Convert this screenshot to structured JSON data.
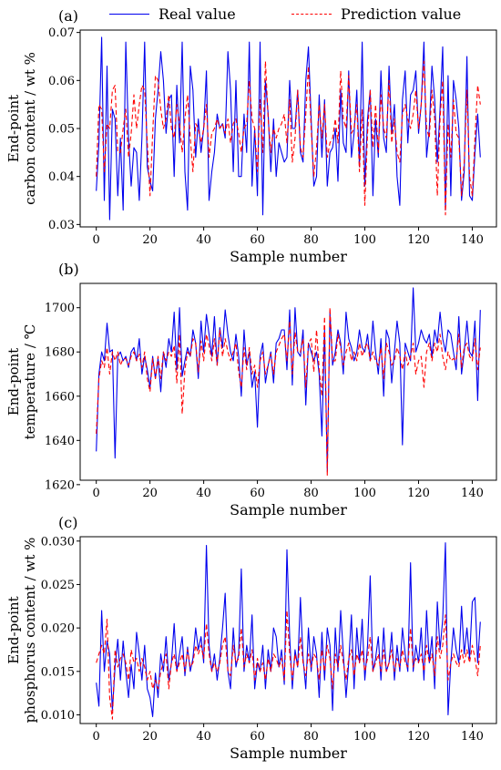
{
  "legend": {
    "real_label": "Real value",
    "pred_label": "Prediction value",
    "real_color": "#0000ee",
    "pred_color": "#ff0000"
  },
  "chart_data": [
    {
      "type": "line",
      "panel_label": "(a)",
      "xlabel": "Sample number",
      "ylabel_lines": [
        "End-point",
        "carbon content / wt %"
      ],
      "xlim": [
        -6,
        149
      ],
      "ylim": [
        0.0295,
        0.0705
      ],
      "xticks": [
        0,
        20,
        40,
        60,
        80,
        100,
        120,
        140
      ],
      "xtick_labels": [
        "0",
        "20",
        "40",
        "60",
        "80",
        "100",
        "120",
        "140"
      ],
      "yticks": [
        0.03,
        0.04,
        0.05,
        0.06,
        0.07
      ],
      "ytick_labels": [
        "0.03",
        "0.04",
        "0.05",
        "0.06",
        "0.07"
      ],
      "series": [
        {
          "name": "Real value",
          "color": "#0000ee",
          "dash": "",
          "values": [
            0.037,
            0.047,
            0.069,
            0.035,
            0.063,
            0.031,
            0.054,
            0.052,
            0.036,
            0.048,
            0.033,
            0.068,
            0.048,
            0.038,
            0.046,
            0.045,
            0.035,
            0.048,
            0.068,
            0.042,
            0.039,
            0.037,
            0.052,
            0.058,
            0.066,
            0.06,
            0.049,
            0.056,
            0.057,
            0.04,
            0.059,
            0.047,
            0.068,
            0.041,
            0.033,
            0.063,
            0.058,
            0.044,
            0.052,
            0.045,
            0.05,
            0.062,
            0.035,
            0.041,
            0.045,
            0.053,
            0.05,
            0.051,
            0.048,
            0.066,
            0.058,
            0.041,
            0.06,
            0.04,
            0.04,
            0.053,
            0.045,
            0.068,
            0.038,
            0.05,
            0.036,
            0.068,
            0.032,
            0.06,
            0.053,
            0.041,
            0.052,
            0.04,
            0.047,
            0.045,
            0.043,
            0.044,
            0.06,
            0.05,
            0.05,
            0.058,
            0.045,
            0.043,
            0.06,
            0.067,
            0.052,
            0.038,
            0.04,
            0.057,
            0.044,
            0.056,
            0.038,
            0.045,
            0.046,
            0.05,
            0.039,
            0.058,
            0.047,
            0.045,
            0.062,
            0.044,
            0.049,
            0.058,
            0.042,
            0.068,
            0.038,
            0.052,
            0.058,
            0.036,
            0.052,
            0.044,
            0.062,
            0.048,
            0.045,
            0.063,
            0.049,
            0.055,
            0.04,
            0.034,
            0.056,
            0.062,
            0.047,
            0.057,
            0.058,
            0.062,
            0.049,
            0.055,
            0.068,
            0.044,
            0.05,
            0.063,
            0.056,
            0.043,
            0.054,
            0.067,
            0.033,
            0.061,
            0.036,
            0.06,
            0.056,
            0.05,
            0.035,
            0.041,
            0.065,
            0.036,
            0.035,
            0.045,
            0.053,
            0.044
          ]
        },
        {
          "name": "Prediction value",
          "color": "#ff0000",
          "dash": "5,3",
          "values": [
            0.04,
            0.055,
            0.054,
            0.041,
            0.051,
            0.05,
            0.058,
            0.059,
            0.045,
            0.045,
            0.05,
            0.054,
            0.044,
            0.049,
            0.057,
            0.05,
            0.055,
            0.059,
            0.058,
            0.047,
            0.036,
            0.049,
            0.061,
            0.06,
            0.054,
            0.05,
            0.052,
            0.057,
            0.05,
            0.048,
            0.055,
            0.051,
            0.045,
            0.052,
            0.057,
            0.048,
            0.041,
            0.051,
            0.05,
            0.047,
            0.05,
            0.055,
            0.044,
            0.049,
            0.05,
            0.052,
            0.05,
            0.051,
            0.049,
            0.052,
            0.047,
            0.051,
            0.052,
            0.049,
            0.045,
            0.05,
            0.051,
            0.06,
            0.052,
            0.05,
            0.041,
            0.056,
            0.045,
            0.064,
            0.052,
            0.045,
            0.05,
            0.048,
            0.05,
            0.051,
            0.053,
            0.047,
            0.056,
            0.043,
            0.048,
            0.058,
            0.046,
            0.044,
            0.053,
            0.063,
            0.05,
            0.04,
            0.046,
            0.055,
            0.048,
            0.055,
            0.044,
            0.047,
            0.048,
            0.052,
            0.047,
            0.062,
            0.052,
            0.05,
            0.061,
            0.049,
            0.05,
            0.055,
            0.041,
            0.054,
            0.034,
            0.049,
            0.058,
            0.046,
            0.055,
            0.045,
            0.057,
            0.05,
            0.048,
            0.06,
            0.047,
            0.052,
            0.045,
            0.043,
            0.053,
            0.055,
            0.052,
            0.05,
            0.053,
            0.058,
            0.05,
            0.055,
            0.064,
            0.05,
            0.048,
            0.058,
            0.052,
            0.036,
            0.052,
            0.06,
            0.032,
            0.051,
            0.044,
            0.056,
            0.049,
            0.048,
            0.036,
            0.043,
            0.058,
            0.04,
            0.036,
            0.048,
            0.059,
            0.055
          ]
        }
      ]
    },
    {
      "type": "line",
      "panel_label": "(b)",
      "xlabel": "Sample number",
      "ylabel_lines": [
        "End-point",
        "temperature / ℃"
      ],
      "xlim": [
        -6,
        149
      ],
      "ylim": [
        1622,
        1711
      ],
      "xticks": [
        0,
        20,
        40,
        60,
        80,
        100,
        120,
        140
      ],
      "xtick_labels": [
        "0",
        "20",
        "40",
        "60",
        "80",
        "100",
        "120",
        "140"
      ],
      "yticks": [
        1620,
        1640,
        1660,
        1680,
        1700
      ],
      "ytick_labels": [
        "1620",
        "1640",
        "1660",
        "1680",
        "1700"
      ],
      "series": [
        {
          "name": "Real value",
          "color": "#0000ee",
          "dash": "",
          "values": [
            1635,
            1670,
            1680,
            1676,
            1693,
            1680,
            1681,
            1632,
            1678,
            1680,
            1676,
            1678,
            1673,
            1680,
            1682,
            1676,
            1686,
            1670,
            1678,
            1672,
            1664,
            1678,
            1668,
            1677,
            1662,
            1680,
            1673,
            1686,
            1680,
            1698,
            1672,
            1700,
            1669,
            1676,
            1682,
            1678,
            1690,
            1684,
            1668,
            1694,
            1680,
            1697,
            1688,
            1678,
            1696,
            1674,
            1691,
            1682,
            1699,
            1688,
            1680,
            1676,
            1688,
            1678,
            1660,
            1690,
            1674,
            1680,
            1664,
            1671,
            1646,
            1678,
            1684,
            1666,
            1674,
            1680,
            1666,
            1684,
            1686,
            1690,
            1690,
            1672,
            1699,
            1665,
            1700,
            1680,
            1678,
            1690,
            1656,
            1684,
            1680,
            1676,
            1680,
            1670,
            1642,
            1690,
            1626,
            1698,
            1674,
            1680,
            1690,
            1684,
            1670,
            1698,
            1686,
            1682,
            1676,
            1680,
            1690,
            1682,
            1680,
            1688,
            1676,
            1694,
            1680,
            1670,
            1686,
            1660,
            1690,
            1686,
            1666,
            1680,
            1694,
            1684,
            1638,
            1684,
            1680,
            1676,
            1709,
            1680,
            1684,
            1690,
            1686,
            1684,
            1688,
            1678,
            1690,
            1684,
            1698,
            1686,
            1680,
            1690,
            1688,
            1680,
            1672,
            1696,
            1670,
            1680,
            1694,
            1680,
            1678,
            1694,
            1658,
            1699
          ]
        },
        {
          "name": "Prediction value",
          "color": "#ff0000",
          "dash": "5,3",
          "values": [
            1643,
            1668,
            1676,
            1673,
            1682,
            1670,
            1680,
            1676,
            1680,
            1674,
            1677,
            1677,
            1674,
            1678,
            1680,
            1676,
            1679,
            1673,
            1680,
            1668,
            1662,
            1677,
            1668,
            1678,
            1668,
            1680,
            1676,
            1680,
            1678,
            1683,
            1666,
            1688,
            1652,
            1672,
            1680,
            1678,
            1686,
            1684,
            1671,
            1685,
            1676,
            1688,
            1683,
            1676,
            1686,
            1674,
            1690,
            1678,
            1686,
            1680,
            1676,
            1680,
            1684,
            1671,
            1664,
            1682,
            1672,
            1682,
            1670,
            1674,
            1664,
            1676,
            1680,
            1670,
            1674,
            1679,
            1670,
            1680,
            1683,
            1686,
            1688,
            1676,
            1694,
            1670,
            1689,
            1680,
            1680,
            1686,
            1664,
            1684,
            1686,
            1671,
            1690,
            1672,
            1660,
            1696,
            1624,
            1700,
            1676,
            1676,
            1688,
            1682,
            1674,
            1680,
            1684,
            1676,
            1680,
            1676,
            1684,
            1678,
            1682,
            1684,
            1676,
            1680,
            1676,
            1674,
            1682,
            1668,
            1684,
            1680,
            1674,
            1676,
            1682,
            1678,
            1672,
            1680,
            1674,
            1678,
            1684,
            1670,
            1676,
            1678,
            1664,
            1680,
            1684,
            1676,
            1684,
            1680,
            1688,
            1678,
            1672,
            1680,
            1676,
            1677,
            1676,
            1688,
            1673,
            1682,
            1684,
            1678,
            1676,
            1686,
            1672,
            1682
          ]
        }
      ]
    },
    {
      "type": "line",
      "panel_label": "(c)",
      "xlabel": "Sample number",
      "ylabel_lines": [
        "End-point",
        "phosphorus content / wt %"
      ],
      "xlim": [
        -6,
        149
      ],
      "ylim": [
        0.009,
        0.0305
      ],
      "xticks": [
        0,
        20,
        40,
        60,
        80,
        100,
        120,
        140
      ],
      "xtick_labels": [
        "0",
        "20",
        "40",
        "60",
        "80",
        "100",
        "120",
        "140"
      ],
      "yticks": [
        0.01,
        0.015,
        0.02,
        0.025,
        0.03
      ],
      "ytick_labels": [
        "0.010",
        "0.015",
        "0.020",
        "0.025",
        "0.030"
      ],
      "series": [
        {
          "name": "Real value",
          "color": "#0000ee",
          "dash": "",
          "values": [
            0.0137,
            0.011,
            0.022,
            0.015,
            0.0185,
            0.017,
            0.0105,
            0.0155,
            0.0187,
            0.014,
            0.0185,
            0.015,
            0.012,
            0.0158,
            0.013,
            0.0195,
            0.017,
            0.014,
            0.018,
            0.013,
            0.012,
            0.0098,
            0.0148,
            0.012,
            0.017,
            0.015,
            0.019,
            0.014,
            0.016,
            0.0205,
            0.015,
            0.017,
            0.019,
            0.0145,
            0.0178,
            0.015,
            0.0165,
            0.02,
            0.0175,
            0.019,
            0.016,
            0.0295,
            0.018,
            0.015,
            0.017,
            0.014,
            0.0165,
            0.02,
            0.024,
            0.015,
            0.013,
            0.02,
            0.0155,
            0.017,
            0.0268,
            0.015,
            0.018,
            0.016,
            0.0215,
            0.013,
            0.016,
            0.015,
            0.018,
            0.013,
            0.0175,
            0.015,
            0.02,
            0.019,
            0.0155,
            0.0175,
            0.0135,
            0.029,
            0.019,
            0.013,
            0.0175,
            0.0155,
            0.0235,
            0.0165,
            0.013,
            0.02,
            0.015,
            0.019,
            0.017,
            0.012,
            0.0195,
            0.014,
            0.02,
            0.018,
            0.0105,
            0.02,
            0.015,
            0.022,
            0.017,
            0.012,
            0.016,
            0.0215,
            0.013,
            0.02,
            0.016,
            0.021,
            0.014,
            0.018,
            0.026,
            0.015,
            0.0165,
            0.019,
            0.014,
            0.02,
            0.015,
            0.016,
            0.0195,
            0.014,
            0.018,
            0.015,
            0.02,
            0.017,
            0.015,
            0.0275,
            0.015,
            0.018,
            0.016,
            0.02,
            0.014,
            0.022,
            0.016,
            0.019,
            0.013,
            0.023,
            0.0175,
            0.021,
            0.0298,
            0.01,
            0.016,
            0.02,
            0.0175,
            0.016,
            0.0225,
            0.017,
            0.02,
            0.0165,
            0.023,
            0.0235,
            0.016,
            0.0207
          ]
        },
        {
          "name": "Prediction value",
          "color": "#ff0000",
          "dash": "5,3",
          "values": [
            0.016,
            0.017,
            0.018,
            0.017,
            0.021,
            0.012,
            0.0095,
            0.0175,
            0.0155,
            0.0165,
            0.017,
            0.016,
            0.014,
            0.0175,
            0.016,
            0.0165,
            0.015,
            0.0165,
            0.0155,
            0.014,
            0.015,
            0.013,
            0.014,
            0.013,
            0.015,
            0.016,
            0.017,
            0.013,
            0.016,
            0.017,
            0.015,
            0.016,
            0.017,
            0.015,
            0.0175,
            0.0155,
            0.016,
            0.018,
            0.017,
            0.018,
            0.0165,
            0.0205,
            0.017,
            0.015,
            0.016,
            0.015,
            0.016,
            0.018,
            0.019,
            0.015,
            0.0145,
            0.018,
            0.016,
            0.0165,
            0.02,
            0.0155,
            0.017,
            0.016,
            0.0175,
            0.014,
            0.0165,
            0.015,
            0.016,
            0.014,
            0.0165,
            0.015,
            0.017,
            0.0165,
            0.0155,
            0.0165,
            0.014,
            0.022,
            0.017,
            0.014,
            0.017,
            0.0155,
            0.019,
            0.016,
            0.0145,
            0.017,
            0.0155,
            0.017,
            0.0165,
            0.014,
            0.0175,
            0.015,
            0.018,
            0.0165,
            0.013,
            0.017,
            0.0155,
            0.018,
            0.016,
            0.014,
            0.0165,
            0.0175,
            0.0145,
            0.017,
            0.016,
            0.0175,
            0.015,
            0.0165,
            0.019,
            0.015,
            0.016,
            0.017,
            0.015,
            0.0175,
            0.015,
            0.016,
            0.0175,
            0.015,
            0.0165,
            0.0155,
            0.0175,
            0.016,
            0.0155,
            0.02,
            0.0155,
            0.0165,
            0.016,
            0.017,
            0.015,
            0.018,
            0.016,
            0.017,
            0.0145,
            0.019,
            0.0165,
            0.018,
            0.0215,
            0.014,
            0.016,
            0.017,
            0.016,
            0.0155,
            0.0175,
            0.016,
            0.0175,
            0.016,
            0.018,
            0.0165,
            0.0145,
            0.018
          ]
        }
      ]
    }
  ]
}
